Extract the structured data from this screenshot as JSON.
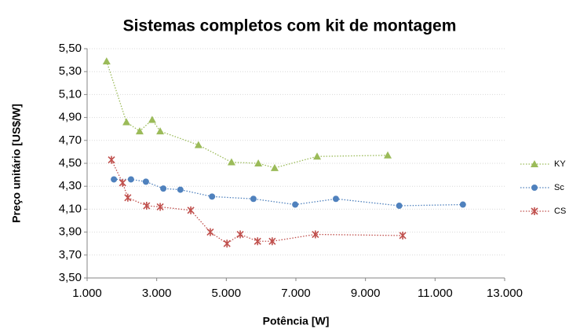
{
  "chart_data": {
    "type": "line",
    "title": "Sistemas completos com kit de montagem",
    "xlabel": "Potência [W]",
    "ylabel": "Preço unitário [US$/W]",
    "xlim": [
      1000,
      13000
    ],
    "xticks": [
      {
        "value": 1000,
        "label": "1.000"
      },
      {
        "value": 3000,
        "label": "3.000"
      },
      {
        "value": 5000,
        "label": "5.000"
      },
      {
        "value": 7000,
        "label": "7.000"
      },
      {
        "value": 9000,
        "label": "9.000"
      },
      {
        "value": 11000,
        "label": "11.000"
      },
      {
        "value": 13000,
        "label": "13.000"
      }
    ],
    "ylim": [
      3.5,
      5.5
    ],
    "yticks": [
      {
        "value": 3.5,
        "label": "3,50"
      },
      {
        "value": 3.7,
        "label": "3,70"
      },
      {
        "value": 3.9,
        "label": "3,90"
      },
      {
        "value": 4.1,
        "label": "4,10"
      },
      {
        "value": 4.3,
        "label": "4,30"
      },
      {
        "value": 4.5,
        "label": "4,50"
      },
      {
        "value": 4.7,
        "label": "4,70"
      },
      {
        "value": 4.9,
        "label": "4,90"
      },
      {
        "value": 5.1,
        "label": "5,10"
      },
      {
        "value": 5.3,
        "label": "5,30"
      },
      {
        "value": 5.5,
        "label": "5,50"
      }
    ],
    "grid": true,
    "legend": "right",
    "series": [
      {
        "name": "KY",
        "color": "#9bbb59",
        "marker": "triangle",
        "x": [
          1560,
          2130,
          2510,
          2870,
          3100,
          4200,
          5150,
          5920,
          6390,
          7610,
          9640
        ],
        "values": [
          5.39,
          4.86,
          4.78,
          4.88,
          4.78,
          4.66,
          4.51,
          4.5,
          4.46,
          4.56,
          4.57
        ]
      },
      {
        "name": "Sc",
        "color": "#4f81bd",
        "marker": "circle",
        "x": [
          1770,
          2260,
          2690,
          3190,
          3680,
          4590,
          5780,
          6980,
          8150,
          9970,
          11800
        ],
        "values": [
          4.36,
          4.36,
          4.34,
          4.28,
          4.27,
          4.21,
          4.19,
          4.14,
          4.19,
          4.13,
          4.14
        ]
      },
      {
        "name": "CS",
        "color": "#c0504d",
        "marker": "star",
        "x": [
          1700,
          2020,
          2170,
          2710,
          3100,
          3980,
          4540,
          5020,
          5400,
          5900,
          6320,
          7560,
          10070
        ],
        "values": [
          4.53,
          4.33,
          4.2,
          4.13,
          4.12,
          4.09,
          3.9,
          3.8,
          3.88,
          3.82,
          3.82,
          3.88,
          3.87
        ]
      }
    ]
  }
}
